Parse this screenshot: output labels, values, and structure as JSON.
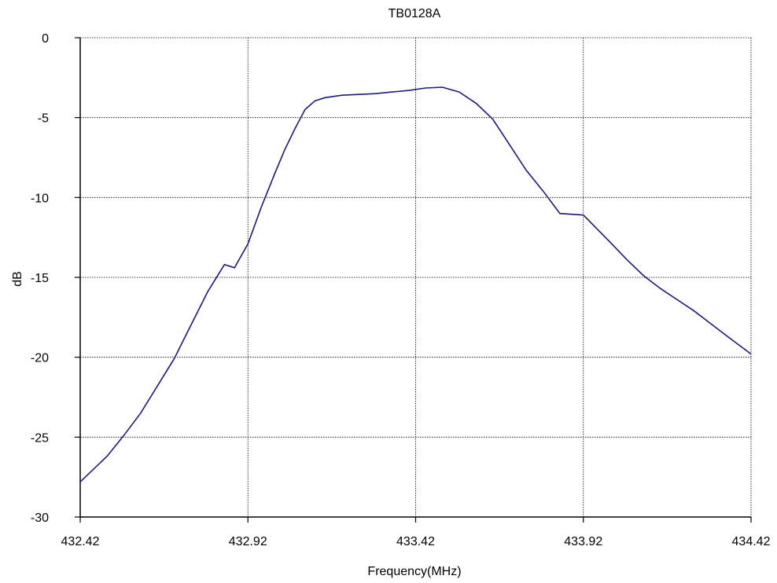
{
  "chart_data": {
    "type": "line",
    "title": "TB0128A",
    "xlabel": "Frequency(MHz)",
    "ylabel": "dB",
    "xlim": [
      432.42,
      434.42
    ],
    "ylim": [
      -30,
      0
    ],
    "grid": true,
    "x_ticks": [
      "432.42",
      "432.92",
      "433.42",
      "433.92",
      "434.42"
    ],
    "y_ticks": [
      "0",
      "-5",
      "-10",
      "-15",
      "-20",
      "-25",
      "-30"
    ],
    "line_color": "#1a1a80",
    "series": [
      {
        "x": [
          432.42,
          432.5,
          432.55,
          432.6,
          432.65,
          432.7,
          432.75,
          432.8,
          432.85,
          432.88,
          432.92,
          432.96,
          433.0,
          433.03,
          433.06,
          433.09,
          433.12,
          433.15,
          433.2,
          433.25,
          433.3,
          433.35,
          433.4,
          433.45,
          433.5,
          433.55,
          433.6,
          433.65,
          433.7,
          433.75,
          433.8,
          433.85,
          433.92,
          434.0,
          434.05,
          434.1,
          434.15,
          434.2,
          434.25,
          434.3,
          434.35,
          434.42
        ],
        "y": [
          -27.8,
          -26.2,
          -24.9,
          -23.5,
          -21.8,
          -20.1,
          -18.0,
          -15.9,
          -14.2,
          -14.4,
          -12.9,
          -10.6,
          -8.5,
          -7.0,
          -5.7,
          -4.5,
          -3.95,
          -3.75,
          -3.6,
          -3.55,
          -3.5,
          -3.4,
          -3.3,
          -3.15,
          -3.1,
          -3.4,
          -4.1,
          -5.1,
          -6.7,
          -8.3,
          -9.6,
          -11.0,
          -11.1,
          -12.8,
          -13.9,
          -14.9,
          -15.7,
          -16.4,
          -17.1,
          -17.9,
          -18.7,
          -19.8
        ]
      }
    ]
  }
}
